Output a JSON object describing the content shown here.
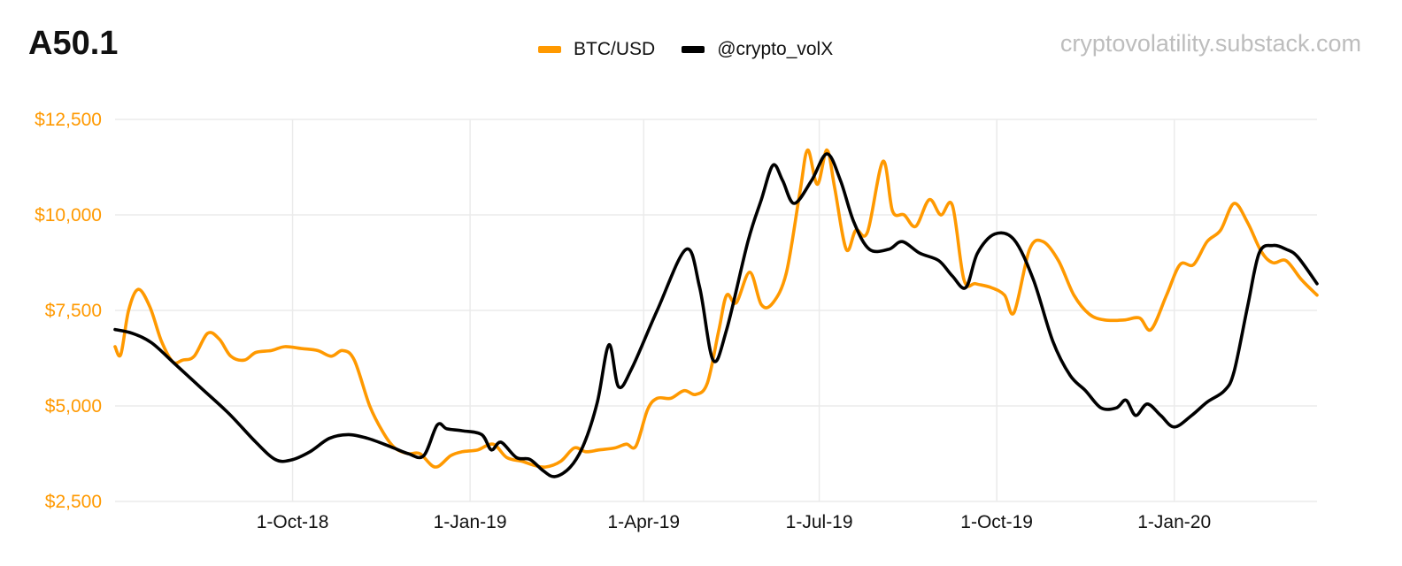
{
  "header": {
    "title": "A50.1",
    "watermark": "cryptovolatility.substack.com"
  },
  "colors": {
    "btc": "#ff9900",
    "vol": "#000000",
    "ytick": "#ff9900",
    "grid": "#ebebeb"
  },
  "chart_data": {
    "type": "line",
    "title": "A50.1",
    "xlabel": "",
    "ylabel": "",
    "grid": true,
    "legend_position": "top-center",
    "x_range": [
      "2018-07-01",
      "2020-03-15"
    ],
    "ylim": [
      2500,
      12500
    ],
    "y_ticks": [
      {
        "value": 2500,
        "label": "$2,500"
      },
      {
        "value": 5000,
        "label": "$5,000"
      },
      {
        "value": 7500,
        "label": "$7,500"
      },
      {
        "value": 10000,
        "label": "$10,000"
      },
      {
        "value": 12500,
        "label": "$12,500"
      }
    ],
    "x_ticks": [
      {
        "date": "2018-10-01",
        "label": "1-Oct-18"
      },
      {
        "date": "2019-01-01",
        "label": "1-Jan-19"
      },
      {
        "date": "2019-04-01",
        "label": "1-Apr-19"
      },
      {
        "date": "2019-07-01",
        "label": "1-Jul-19"
      },
      {
        "date": "2019-10-01",
        "label": "1-Oct-19"
      },
      {
        "date": "2020-01-01",
        "label": "1-Jan-20"
      }
    ],
    "series": [
      {
        "name": "BTC/USD",
        "color": "#ff9900",
        "points": [
          [
            "2018-07-01",
            6550
          ],
          [
            "2018-07-04",
            6350
          ],
          [
            "2018-07-08",
            7500
          ],
          [
            "2018-07-13",
            8050
          ],
          [
            "2018-07-19",
            7600
          ],
          [
            "2018-07-25",
            6700
          ],
          [
            "2018-07-31",
            6150
          ],
          [
            "2018-08-05",
            6200
          ],
          [
            "2018-08-11",
            6300
          ],
          [
            "2018-08-18",
            6900
          ],
          [
            "2018-08-24",
            6750
          ],
          [
            "2018-08-30",
            6300
          ],
          [
            "2018-09-06",
            6200
          ],
          [
            "2018-09-12",
            6400
          ],
          [
            "2018-09-20",
            6450
          ],
          [
            "2018-09-27",
            6550
          ],
          [
            "2018-10-06",
            6500
          ],
          [
            "2018-10-14",
            6450
          ],
          [
            "2018-10-21",
            6300
          ],
          [
            "2018-10-27",
            6450
          ],
          [
            "2018-11-02",
            6200
          ],
          [
            "2018-11-10",
            5000
          ],
          [
            "2018-11-17",
            4300
          ],
          [
            "2018-11-23",
            3900
          ],
          [
            "2018-11-30",
            3750
          ],
          [
            "2018-12-06",
            3750
          ],
          [
            "2018-12-14",
            3400
          ],
          [
            "2018-12-22",
            3700
          ],
          [
            "2018-12-28",
            3800
          ],
          [
            "2019-01-05",
            3850
          ],
          [
            "2019-01-13",
            4000
          ],
          [
            "2019-01-20",
            3650
          ],
          [
            "2019-01-28",
            3550
          ],
          [
            "2019-02-03",
            3450
          ],
          [
            "2019-02-09",
            3400
          ],
          [
            "2019-02-17",
            3550
          ],
          [
            "2019-02-24",
            3900
          ],
          [
            "2019-03-02",
            3800
          ],
          [
            "2019-03-09",
            3850
          ],
          [
            "2019-03-17",
            3900
          ],
          [
            "2019-03-23",
            4000
          ],
          [
            "2019-03-28",
            3950
          ],
          [
            "2019-04-03",
            4900
          ],
          [
            "2019-04-08",
            5200
          ],
          [
            "2019-04-15",
            5200
          ],
          [
            "2019-04-22",
            5400
          ],
          [
            "2019-04-28",
            5300
          ],
          [
            "2019-05-04",
            5600
          ],
          [
            "2019-05-10",
            7000
          ],
          [
            "2019-05-14",
            7900
          ],
          [
            "2019-05-19",
            7700
          ],
          [
            "2019-05-26",
            8500
          ],
          [
            "2019-06-01",
            7650
          ],
          [
            "2019-06-07",
            7700
          ],
          [
            "2019-06-14",
            8500
          ],
          [
            "2019-06-21",
            10600
          ],
          [
            "2019-06-25",
            11700
          ],
          [
            "2019-06-30",
            10800
          ],
          [
            "2019-07-05",
            11700
          ],
          [
            "2019-07-09",
            10700
          ],
          [
            "2019-07-15",
            9100
          ],
          [
            "2019-07-20",
            9600
          ],
          [
            "2019-07-26",
            9550
          ],
          [
            "2019-08-03",
            11400
          ],
          [
            "2019-08-08",
            10100
          ],
          [
            "2019-08-14",
            10000
          ],
          [
            "2019-08-20",
            9700
          ],
          [
            "2019-08-27",
            10400
          ],
          [
            "2019-09-02",
            10000
          ],
          [
            "2019-09-08",
            10250
          ],
          [
            "2019-09-14",
            8300
          ],
          [
            "2019-09-20",
            8200
          ],
          [
            "2019-09-28",
            8100
          ],
          [
            "2019-10-05",
            7900
          ],
          [
            "2019-10-10",
            7450
          ],
          [
            "2019-10-18",
            9100
          ],
          [
            "2019-10-25",
            9300
          ],
          [
            "2019-11-02",
            8800
          ],
          [
            "2019-11-10",
            7900
          ],
          [
            "2019-11-18",
            7400
          ],
          [
            "2019-11-26",
            7250
          ],
          [
            "2019-12-06",
            7250
          ],
          [
            "2019-12-14",
            7300
          ],
          [
            "2019-12-20",
            7000
          ],
          [
            "2019-12-28",
            7900
          ],
          [
            "2020-01-04",
            8700
          ],
          [
            "2020-01-11",
            8700
          ],
          [
            "2020-01-18",
            9300
          ],
          [
            "2020-01-25",
            9600
          ],
          [
            "2020-02-01",
            10300
          ],
          [
            "2020-02-08",
            9800
          ],
          [
            "2020-02-15",
            9050
          ],
          [
            "2020-02-21",
            8750
          ],
          [
            "2020-02-28",
            8800
          ],
          [
            "2020-03-07",
            8300
          ],
          [
            "2020-03-15",
            7900
          ]
        ]
      },
      {
        "name": "@crypto_volX",
        "color": "#000000",
        "points": [
          [
            "2018-07-01",
            7000
          ],
          [
            "2018-07-10",
            6900
          ],
          [
            "2018-07-20",
            6650
          ],
          [
            "2018-08-01",
            6100
          ],
          [
            "2018-08-15",
            5450
          ],
          [
            "2018-08-29",
            4800
          ],
          [
            "2018-09-12",
            4050
          ],
          [
            "2018-09-22",
            3600
          ],
          [
            "2018-09-30",
            3580
          ],
          [
            "2018-10-10",
            3800
          ],
          [
            "2018-10-20",
            4150
          ],
          [
            "2018-10-30",
            4250
          ],
          [
            "2018-11-09",
            4150
          ],
          [
            "2018-11-20",
            3950
          ],
          [
            "2018-11-30",
            3750
          ],
          [
            "2018-12-08",
            3700
          ],
          [
            "2018-12-15",
            4500
          ],
          [
            "2018-12-20",
            4400
          ],
          [
            "2018-12-28",
            4350
          ],
          [
            "2019-01-07",
            4250
          ],
          [
            "2019-01-12",
            3850
          ],
          [
            "2019-01-17",
            4050
          ],
          [
            "2019-01-25",
            3650
          ],
          [
            "2019-02-01",
            3600
          ],
          [
            "2019-02-08",
            3300
          ],
          [
            "2019-02-14",
            3150
          ],
          [
            "2019-02-22",
            3400
          ],
          [
            "2019-03-01",
            4000
          ],
          [
            "2019-03-08",
            5100
          ],
          [
            "2019-03-14",
            6600
          ],
          [
            "2019-03-19",
            5500
          ],
          [
            "2019-03-26",
            6000
          ],
          [
            "2019-04-08",
            7500
          ],
          [
            "2019-04-23",
            9100
          ],
          [
            "2019-04-30",
            8100
          ],
          [
            "2019-05-07",
            6200
          ],
          [
            "2019-05-14",
            7000
          ],
          [
            "2019-05-25",
            9300
          ],
          [
            "2019-06-01",
            10400
          ],
          [
            "2019-06-07",
            11300
          ],
          [
            "2019-06-12",
            10900
          ],
          [
            "2019-06-18",
            10300
          ],
          [
            "2019-06-27",
            10900
          ],
          [
            "2019-07-05",
            11600
          ],
          [
            "2019-07-12",
            10900
          ],
          [
            "2019-07-19",
            9800
          ],
          [
            "2019-07-27",
            9100
          ],
          [
            "2019-08-06",
            9100
          ],
          [
            "2019-08-13",
            9300
          ],
          [
            "2019-08-22",
            9000
          ],
          [
            "2019-09-01",
            8800
          ],
          [
            "2019-09-08",
            8400
          ],
          [
            "2019-09-15",
            8100
          ],
          [
            "2019-09-21",
            9000
          ],
          [
            "2019-09-30",
            9500
          ],
          [
            "2019-10-10",
            9350
          ],
          [
            "2019-10-20",
            8300
          ],
          [
            "2019-10-30",
            6700
          ],
          [
            "2019-11-08",
            5800
          ],
          [
            "2019-11-16",
            5400
          ],
          [
            "2019-11-24",
            4950
          ],
          [
            "2019-12-02",
            4950
          ],
          [
            "2019-12-07",
            5150
          ],
          [
            "2019-12-12",
            4750
          ],
          [
            "2019-12-18",
            5050
          ],
          [
            "2019-12-25",
            4750
          ],
          [
            "2020-01-01",
            4450
          ],
          [
            "2020-01-10",
            4750
          ],
          [
            "2020-01-18",
            5100
          ],
          [
            "2020-01-27",
            5400
          ],
          [
            "2020-02-01",
            5900
          ],
          [
            "2020-02-08",
            7600
          ],
          [
            "2020-02-14",
            9000
          ],
          [
            "2020-02-21",
            9200
          ],
          [
            "2020-02-28",
            9100
          ],
          [
            "2020-03-05",
            8900
          ],
          [
            "2020-03-15",
            8200
          ]
        ]
      }
    ]
  }
}
